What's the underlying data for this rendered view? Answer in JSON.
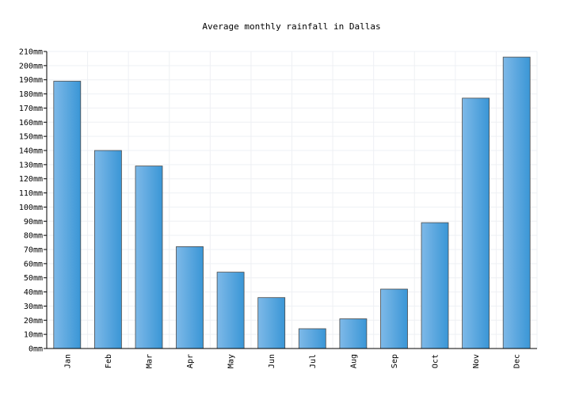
{
  "chart_data": {
    "type": "bar",
    "title": "Average monthly rainfall in Dallas",
    "xlabel": "",
    "ylabel": "",
    "categories": [
      "Jan",
      "Feb",
      "Mar",
      "Apr",
      "May",
      "Jun",
      "Jul",
      "Aug",
      "Sep",
      "Oct",
      "Nov",
      "Dec"
    ],
    "values": [
      189,
      140,
      129,
      72,
      54,
      36,
      14,
      21,
      42,
      89,
      177,
      206
    ],
    "unit": "mm",
    "ylim": [
      0,
      210
    ],
    "ytick_step": 10,
    "grid": true,
    "legend": "none",
    "colors": {
      "bar_light": "#7eb9e8",
      "bar_dark": "#3a96d6",
      "bar_stroke": "#4a4a4a",
      "grid": "#eef0f4",
      "axis": "#000000"
    }
  }
}
